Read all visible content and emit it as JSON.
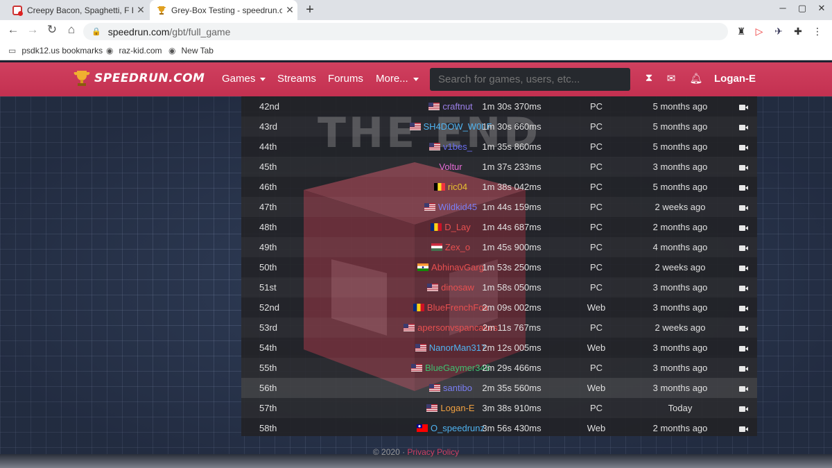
{
  "browser": {
    "tabs": [
      {
        "title": "Creepy Bacon, Spaghetti, F E M E",
        "close": "✕"
      },
      {
        "title": "Grey-Box Testing - speedrun.com",
        "close": "✕"
      }
    ],
    "new_tab": "+",
    "window_controls": [
      "─",
      "▢",
      "✕"
    ],
    "url_host": "speedrun.com",
    "url_path": "/gbt/full_game",
    "bookmarks": [
      "psdk12.us bookmarks",
      "raz-kid.com",
      "New Tab"
    ]
  },
  "site": {
    "logo": "SPEEDRUN.COM",
    "nav": {
      "games": "Games",
      "streams": "Streams",
      "forums": "Forums",
      "more": "More..."
    },
    "search_placeholder": "Search for games, users, etc...",
    "user": "Logan-E",
    "accent": "#c8375a"
  },
  "background_text": "THE END",
  "leaderboard": {
    "rows": [
      {
        "rank": "42nd",
        "player": "craftnut",
        "flag": "us",
        "color": "#9b7fe8",
        "time": "1m 30s 370ms",
        "platform": "PC",
        "date": "5 months ago"
      },
      {
        "rank": "43rd",
        "player": "SH4DOW_W0LF",
        "flag": "us",
        "color": "#4fb3f0",
        "time": "1m 30s 660ms",
        "platform": "PC",
        "date": "5 months ago"
      },
      {
        "rank": "44th",
        "player": "v1bes_",
        "flag": "us",
        "color": "#6a6ef0",
        "time": "1m 35s 860ms",
        "platform": "PC",
        "date": "5 months ago"
      },
      {
        "rank": "45th",
        "player": "Voltur",
        "flag": "",
        "color": "#e86cd8",
        "time": "1m 37s 233ms",
        "platform": "PC",
        "date": "3 months ago"
      },
      {
        "rank": "46th",
        "player": "ric04",
        "flag": "be",
        "color": "#e8c030",
        "time": "1m 38s 042ms",
        "platform": "PC",
        "date": "5 months ago"
      },
      {
        "rank": "47th",
        "player": "Wildkid45",
        "flag": "us",
        "color": "#7a7ef4",
        "time": "1m 44s 159ms",
        "platform": "PC",
        "date": "2 weeks ago"
      },
      {
        "rank": "48th",
        "player": "D_Lay",
        "flag": "ro",
        "color": "#e85050",
        "time": "1m 44s 687ms",
        "platform": "PC",
        "date": "2 months ago"
      },
      {
        "rank": "49th",
        "player": "Zex_o",
        "flag": "hu",
        "color": "#e85050",
        "time": "1m 45s 900ms",
        "platform": "PC",
        "date": "4 months ago"
      },
      {
        "rank": "50th",
        "player": "AbhinavGarg",
        "flag": "in",
        "color": "#e85050",
        "time": "1m 53s 250ms",
        "platform": "PC",
        "date": "2 weeks ago"
      },
      {
        "rank": "51st",
        "player": "dinosaw",
        "flag": "us",
        "color": "#e85050",
        "time": "1m 58s 050ms",
        "platform": "PC",
        "date": "3 months ago"
      },
      {
        "rank": "52nd",
        "player": "BlueFrenchFox",
        "flag": "ro",
        "color": "#e85050",
        "time": "2m 09s 002ms",
        "platform": "Web",
        "date": "3 months ago"
      },
      {
        "rank": "53rd",
        "player": "apersonvspancakes",
        "flag": "us",
        "color": "#e85050",
        "time": "2m 11s 767ms",
        "platform": "PC",
        "date": "2 weeks ago"
      },
      {
        "rank": "54th",
        "player": "NanorMan317",
        "flag": "us",
        "color": "#4fb3f0",
        "time": "2m 12s 005ms",
        "platform": "Web",
        "date": "3 months ago"
      },
      {
        "rank": "55th",
        "player": "BlueGaymer346",
        "flag": "us",
        "color": "#3fc070",
        "time": "2m 29s 466ms",
        "platform": "PC",
        "date": "3 months ago"
      },
      {
        "rank": "56th",
        "player": "santibo",
        "flag": "us",
        "color": "#7a7ef4",
        "time": "2m 35s 560ms",
        "platform": "Web",
        "date": "3 months ago"
      },
      {
        "rank": "57th",
        "player": "Logan-E",
        "flag": "us",
        "color": "#f0a040",
        "time": "3m 38s 910ms",
        "platform": "PC",
        "date": "Today"
      },
      {
        "rank": "58th",
        "player": "O_speedrunz",
        "flag": "tw",
        "color": "#4fb3f0",
        "time": "3m 56s 430ms",
        "platform": "Web",
        "date": "2 months ago"
      }
    ]
  },
  "footer": {
    "copyright": "© 2020 ·",
    "privacy": "Privacy Policy"
  }
}
